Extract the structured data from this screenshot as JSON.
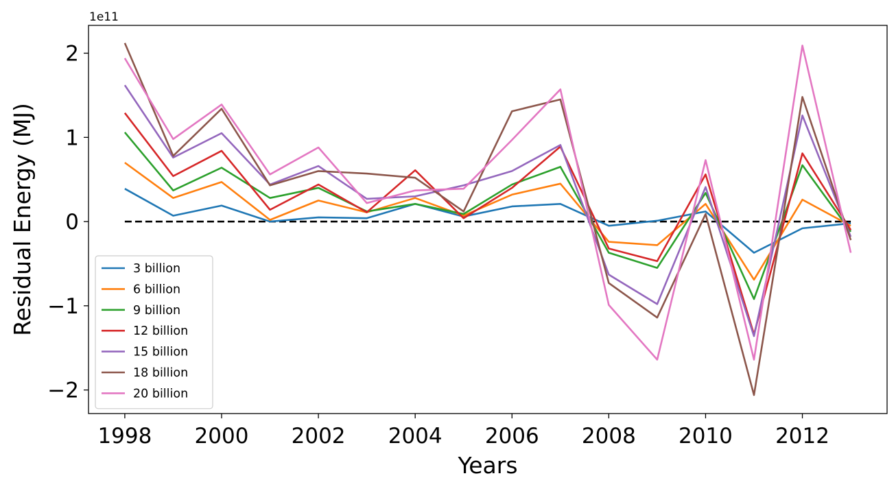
{
  "chart_data": {
    "type": "line",
    "x": [
      1998,
      1999,
      2000,
      2001,
      2002,
      2003,
      2004,
      2005,
      2006,
      2007,
      2008,
      2009,
      2010,
      2011,
      2012,
      2013
    ],
    "xlabel": "Years",
    "ylabel": "Residual Energy (MJ)",
    "y_offset_label": "1e11",
    "xlim": [
      1997.25,
      2013.75
    ],
    "ylim": [
      -2.28,
      2.33
    ],
    "x_ticks": [
      1998,
      2000,
      2002,
      2004,
      2006,
      2008,
      2010,
      2012
    ],
    "x_tick_labels": [
      "1998",
      "2000",
      "2002",
      "2004",
      "2006",
      "2008",
      "2010",
      "2012"
    ],
    "y_ticks": [
      -2,
      -1,
      0,
      1,
      2
    ],
    "y_tick_labels": [
      "−2",
      "−1",
      "0",
      "1",
      "2"
    ],
    "grid": false,
    "legend_position": "lower-left",
    "reference_line": {
      "y": 0,
      "style": "dashed",
      "color": "#000000"
    },
    "series": [
      {
        "name": "3 billion",
        "color": "#1f77b4",
        "values": [
          0.39,
          0.07,
          0.19,
          0.0,
          0.05,
          0.04,
          0.21,
          0.06,
          0.18,
          0.21,
          -0.05,
          0.01,
          0.12,
          -0.37,
          -0.08,
          -0.02
        ]
      },
      {
        "name": "6 billion",
        "color": "#ff7f0e",
        "values": [
          0.7,
          0.28,
          0.47,
          0.02,
          0.25,
          0.11,
          0.28,
          0.07,
          0.32,
          0.45,
          -0.24,
          -0.28,
          0.21,
          -0.69,
          0.26,
          -0.05
        ]
      },
      {
        "name": "9 billion",
        "color": "#2ca02c",
        "values": [
          1.06,
          0.37,
          0.64,
          0.28,
          0.4,
          0.12,
          0.21,
          0.09,
          0.44,
          0.65,
          -0.37,
          -0.55,
          0.34,
          -0.92,
          0.67,
          -0.12
        ]
      },
      {
        "name": "12 billion",
        "color": "#d62728",
        "values": [
          1.29,
          0.54,
          0.84,
          0.14,
          0.44,
          0.11,
          0.61,
          0.04,
          0.4,
          0.89,
          -0.32,
          -0.47,
          0.56,
          -1.34,
          0.81,
          -0.1
        ]
      },
      {
        "name": "15 billion",
        "color": "#9467bd",
        "values": [
          1.62,
          0.76,
          1.05,
          0.44,
          0.66,
          0.27,
          0.3,
          0.43,
          0.6,
          0.91,
          -0.63,
          -0.98,
          0.41,
          -1.36,
          1.26,
          -0.18
        ]
      },
      {
        "name": "18 billion",
        "color": "#8c564b",
        "values": [
          2.12,
          0.78,
          1.34,
          0.43,
          0.6,
          0.57,
          0.52,
          0.12,
          1.31,
          1.45,
          -0.73,
          -1.14,
          0.09,
          -2.06,
          1.48,
          -0.22
        ]
      },
      {
        "name": "20 billion",
        "color": "#e377c2",
        "values": [
          1.94,
          0.98,
          1.39,
          0.56,
          0.88,
          0.22,
          0.37,
          0.39,
          0.97,
          1.57,
          -0.99,
          -1.64,
          0.73,
          -1.64,
          2.09,
          -0.37
        ]
      }
    ]
  }
}
